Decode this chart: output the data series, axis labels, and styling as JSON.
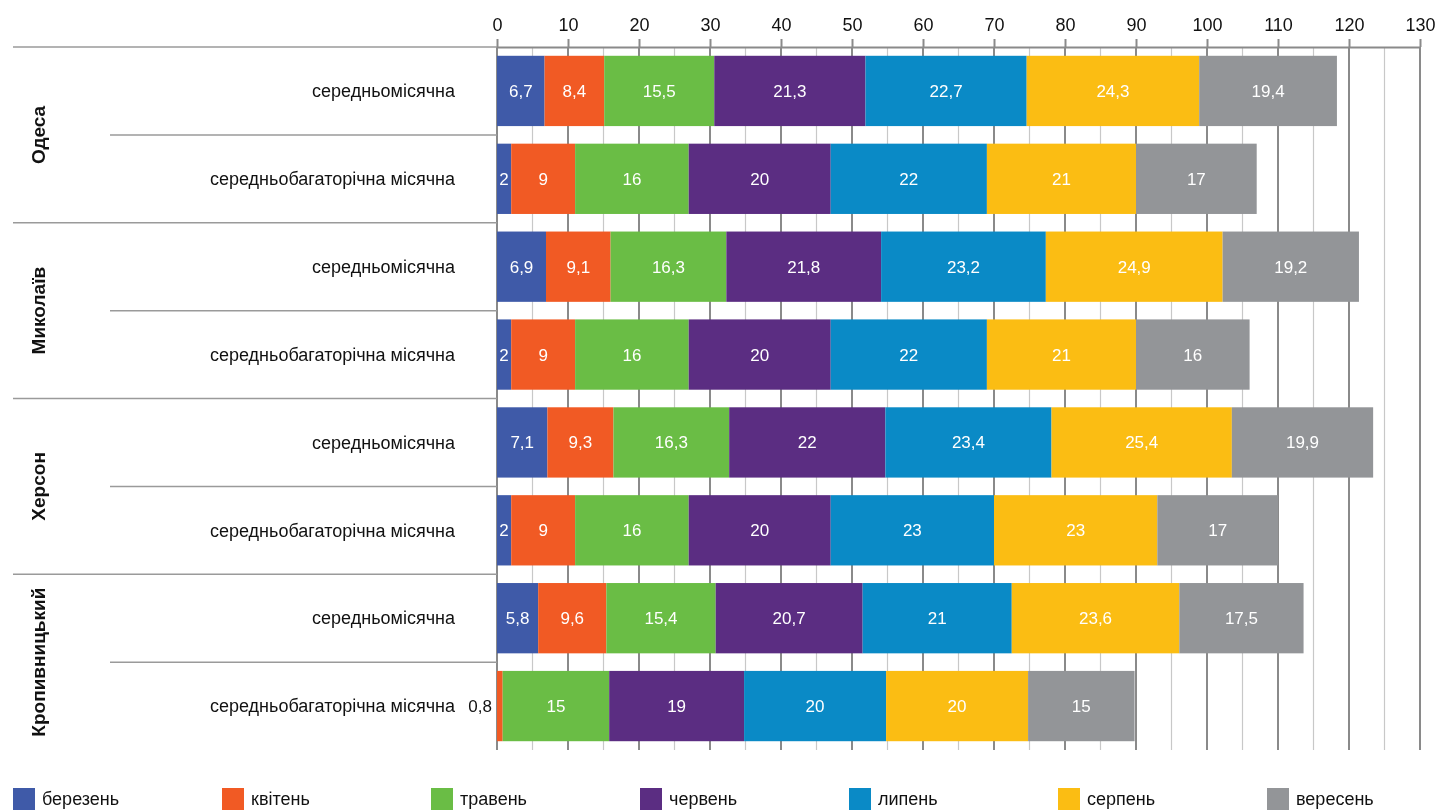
{
  "chart_data": {
    "type": "bar",
    "orientation": "horizontal",
    "stacked": true,
    "categories": [
      "середньомісячна",
      "середньобагаторічна місячна",
      "середньомісячна",
      "середньобагаторічна місячна",
      "середньомісячна",
      "середньобагаторічна місячна",
      "середньомісячна",
      "середньобагаторічна місячна"
    ],
    "annotations": [
      "Одеса",
      "Миколаїв",
      "Херсон",
      "Кропивницький"
    ],
    "series": [
      {
        "name": "березень",
        "color": "#3f5aa8",
        "values": [
          6.7,
          2,
          6.9,
          2,
          7.1,
          2,
          5.8,
          null
        ],
        "value_labels": [
          "6,7",
          "2",
          "6,9",
          "2",
          "7,1",
          "2",
          "5,8",
          null
        ]
      },
      {
        "name": "квітень",
        "color": "#f15a24",
        "values": [
          8.4,
          9,
          9.1,
          9,
          9.3,
          9,
          9.6,
          0.8
        ],
        "value_labels": [
          "8,4",
          "9",
          "9,1",
          "9",
          "9,3",
          "9",
          "9,6",
          "0,8"
        ]
      },
      {
        "name": "травень",
        "color": "#6abd45",
        "values": [
          15.5,
          16,
          16.3,
          16,
          16.3,
          16,
          15.4,
          15
        ],
        "value_labels": [
          "15,5",
          "16",
          "16,3",
          "16",
          "16,3",
          "16",
          "15,4",
          "15"
        ]
      },
      {
        "name": "червень",
        "color": "#5b2d82",
        "values": [
          21.3,
          20,
          21.8,
          20,
          22,
          20,
          20.7,
          19
        ],
        "value_labels": [
          "21,3",
          "20",
          "21,8",
          "20",
          "22",
          "20",
          "20,7",
          "19"
        ]
      },
      {
        "name": "липень",
        "color": "#0a8ac6",
        "values": [
          22.7,
          22,
          23.2,
          22,
          23.4,
          23,
          21,
          20
        ],
        "value_labels": [
          "22,7",
          "22",
          "23,2",
          "22",
          "23,4",
          "23",
          "21",
          "20"
        ]
      },
      {
        "name": "серпень",
        "color": "#fbbd13",
        "values": [
          24.3,
          21,
          24.9,
          21,
          25.4,
          23,
          23.6,
          20
        ],
        "value_labels": [
          "24,3",
          "21",
          "24,9",
          "21",
          "25,4",
          "23",
          "23,6",
          "20"
        ]
      },
      {
        "name": "вересень",
        "color": "#939598",
        "values": [
          19.4,
          17,
          19.2,
          16,
          19.9,
          17,
          17.5,
          15
        ],
        "value_labels": [
          "19,4",
          "17",
          "19,2",
          "16",
          "19,9",
          "17",
          "17,5",
          "15"
        ]
      }
    ],
    "xlim": [
      0,
      130
    ],
    "xticks": [
      0,
      {
        "value": 5,
        "label": null
      },
      10,
      {
        "value": 15,
        "label": null
      },
      20,
      {
        "value": 25,
        "label": null
      },
      30,
      {
        "value": 35,
        "label": null
      },
      40,
      {
        "value": 45,
        "label": null
      },
      50,
      {
        "value": 55,
        "label": null
      },
      60,
      {
        "value": 65,
        "label": null
      },
      70,
      {
        "value": 75,
        "label": null
      },
      80,
      {
        "value": 85,
        "label": null
      },
      90,
      {
        "value": 95,
        "label": null
      },
      100,
      {
        "value": 105,
        "label": null
      },
      110,
      {
        "value": 115,
        "label": null
      },
      120,
      {
        "value": 125,
        "label": null
      },
      130
    ],
    "grid": "x",
    "legend": "bottom"
  }
}
